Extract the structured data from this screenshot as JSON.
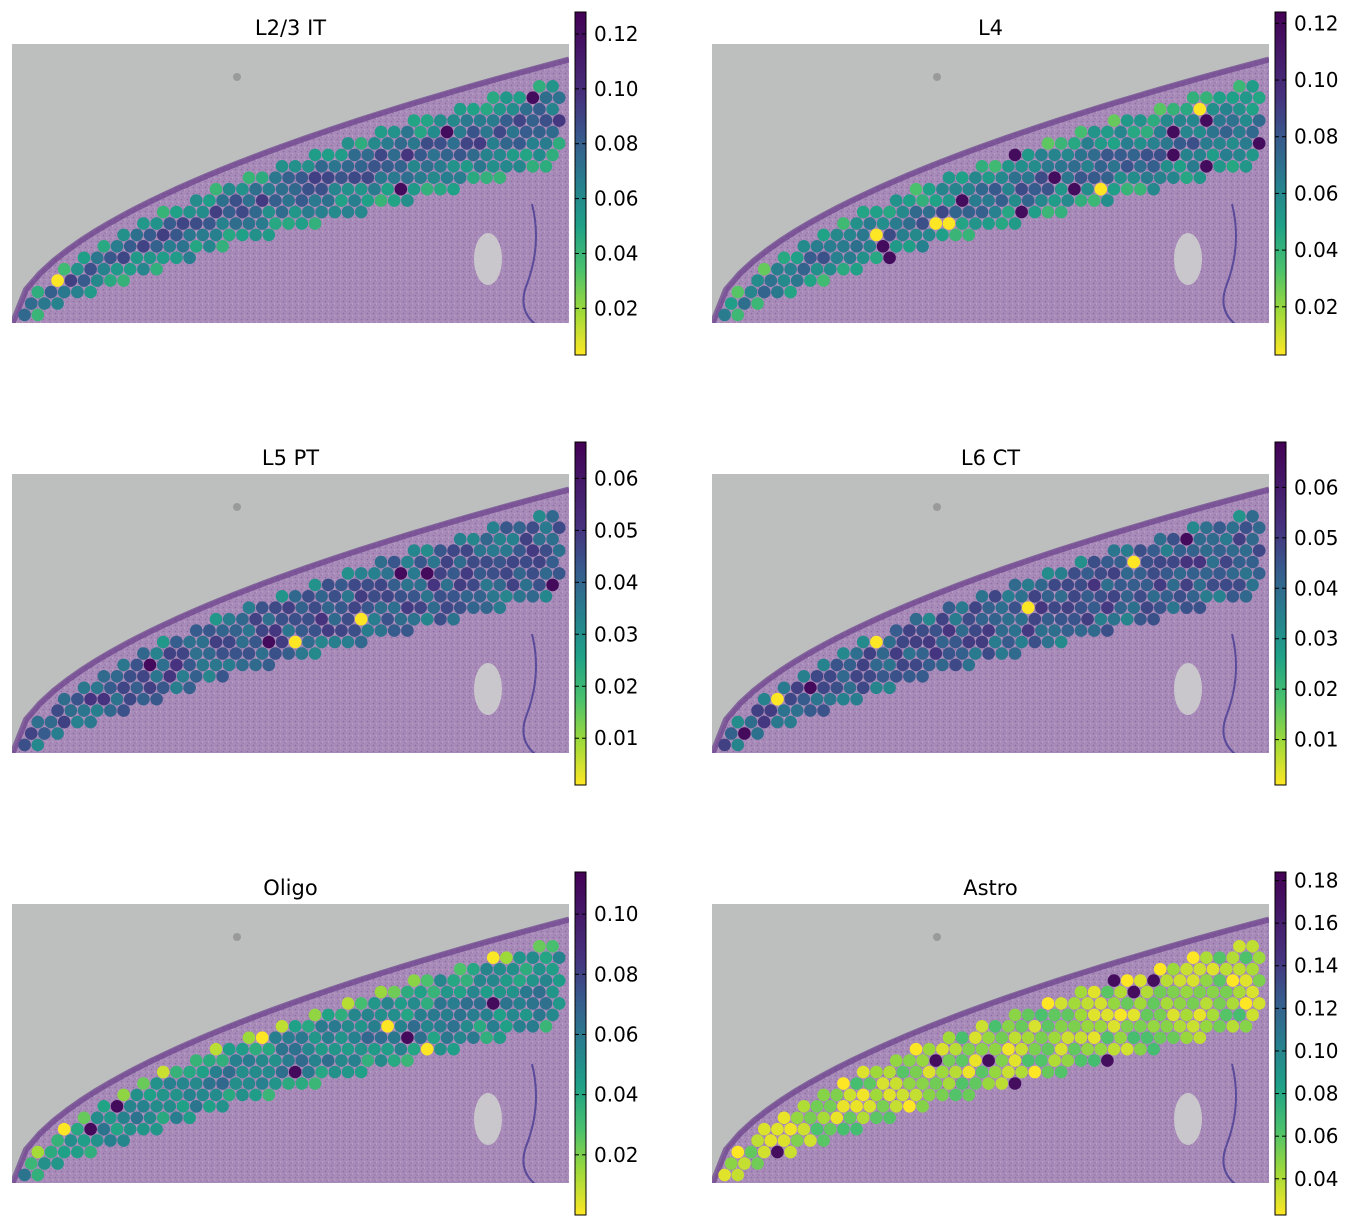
{
  "chart_data": [
    {
      "type": "spatial-scatter",
      "title": "L2/3 IT",
      "colormap": "viridis_r",
      "colorbar": {
        "min": 0.003,
        "max": 0.128,
        "ticks": [
          0.02,
          0.04,
          0.06,
          0.08,
          0.1,
          0.12
        ],
        "tick_labels": [
          "0.02",
          "0.04",
          "0.06",
          "0.08",
          "0.10",
          "0.12"
        ]
      },
      "pattern": {
        "base": 0.06,
        "band_center": 0.45,
        "band_width": 0.22,
        "band_amp": 0.035,
        "edge_low": 0.03,
        "seed": 1
      }
    },
    {
      "type": "spatial-scatter",
      "title": "L4",
      "colormap": "viridis_r",
      "colorbar": {
        "min": 0.003,
        "max": 0.124,
        "ticks": [
          0.02,
          0.04,
          0.06,
          0.08,
          0.1,
          0.12
        ],
        "tick_labels": [
          "0.02",
          "0.04",
          "0.06",
          "0.08",
          "0.10",
          "0.12"
        ]
      },
      "pattern": {
        "base": 0.055,
        "band_center": 0.55,
        "band_width": 0.22,
        "band_amp": 0.03,
        "edge_low": 0.035,
        "seed": 2
      }
    },
    {
      "type": "spatial-scatter",
      "title": "L5 PT",
      "colormap": "viridis_r",
      "colorbar": {
        "min": 0.001,
        "max": 0.067,
        "ticks": [
          0.01,
          0.02,
          0.03,
          0.04,
          0.05,
          0.06
        ],
        "tick_labels": [
          "0.01",
          "0.02",
          "0.03",
          "0.04",
          "0.05",
          "0.06"
        ]
      },
      "pattern": {
        "base": 0.042,
        "band_center": 0.5,
        "band_width": 0.35,
        "band_amp": 0.008,
        "edge_low": 0.035,
        "seed": 3
      }
    },
    {
      "type": "spatial-scatter",
      "title": "L6 CT",
      "colormap": "viridis_r",
      "colorbar": {
        "min": 0.001,
        "max": 0.069,
        "ticks": [
          0.01,
          0.02,
          0.03,
          0.04,
          0.05,
          0.06
        ],
        "tick_labels": [
          "0.01",
          "0.02",
          "0.03",
          "0.04",
          "0.05",
          "0.06"
        ]
      },
      "pattern": {
        "base": 0.044,
        "band_center": 0.5,
        "band_width": 0.35,
        "band_amp": 0.008,
        "edge_low": 0.035,
        "seed": 4
      }
    },
    {
      "type": "spatial-scatter",
      "title": "Oligo",
      "colormap": "viridis_r",
      "colorbar": {
        "min": 0.0,
        "max": 0.114,
        "ticks": [
          0.02,
          0.04,
          0.06,
          0.08,
          0.1
        ],
        "tick_labels": [
          "0.02",
          "0.04",
          "0.06",
          "0.08",
          "0.10"
        ]
      },
      "pattern": {
        "base": 0.05,
        "band_center": 0.6,
        "band_width": 0.3,
        "band_amp": 0.012,
        "edge_low": -0.03,
        "seed": 5
      }
    },
    {
      "type": "spatial-scatter",
      "title": "Astro",
      "colormap": "viridis_r",
      "colorbar": {
        "min": 0.023,
        "max": 0.184,
        "ticks": [
          0.04,
          0.06,
          0.08,
          0.1,
          0.12,
          0.14,
          0.16,
          0.18
        ],
        "tick_labels": [
          "0.04",
          "0.06",
          "0.08",
          "0.10",
          "0.12",
          "0.14",
          "0.16",
          "0.18"
        ]
      },
      "pattern": {
        "base": 0.055,
        "band_center": 0.5,
        "band_width": 0.3,
        "band_amp": -0.01,
        "edge_low": -0.01,
        "seed": 6
      }
    }
  ]
}
